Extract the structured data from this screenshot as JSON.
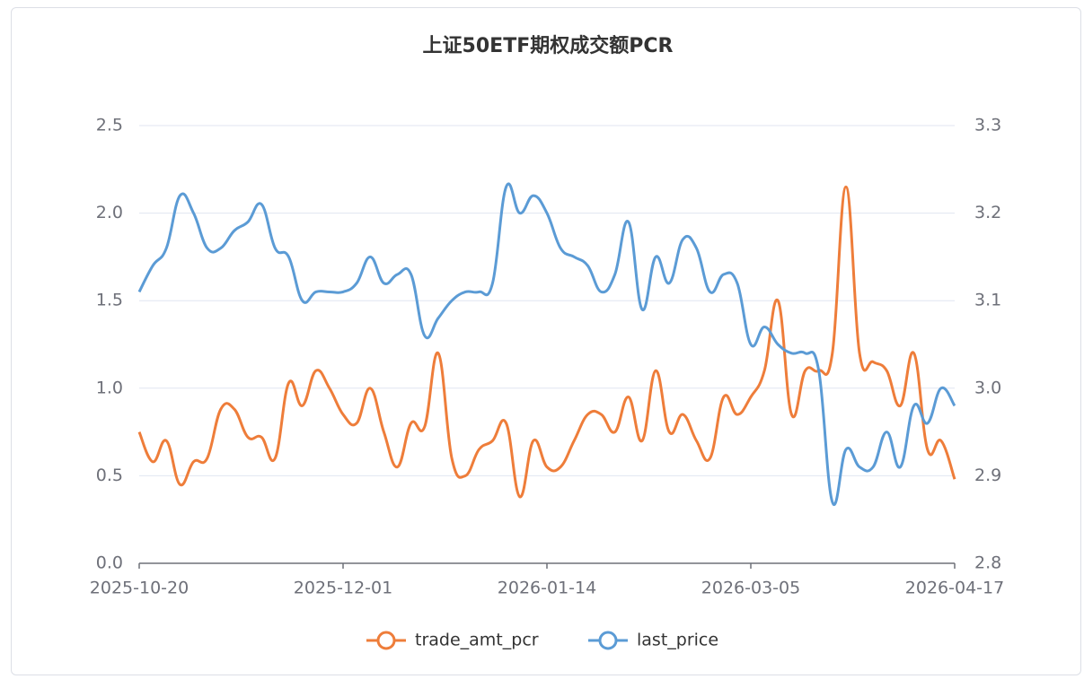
{
  "chart_data": {
    "type": "line",
    "title": "上证50ETF期权成交额PCR",
    "categories": [
      "2025-10-20",
      null,
      null,
      null,
      null,
      null,
      null,
      null,
      null,
      null,
      null,
      null,
      null,
      null,
      null,
      "2025-12-01",
      null,
      null,
      null,
      null,
      null,
      null,
      null,
      null,
      null,
      null,
      null,
      null,
      null,
      null,
      "2026-01-14",
      null,
      null,
      null,
      null,
      null,
      null,
      null,
      null,
      null,
      null,
      null,
      null,
      null,
      null,
      "2026-03-05",
      null,
      null,
      null,
      null,
      null,
      null,
      null,
      null,
      null,
      null,
      null,
      null,
      null,
      null,
      "2026-04-17"
    ],
    "series": [
      {
        "name": "trade_amt_pcr",
        "color": "#ee7d3a",
        "axis": "y",
        "values": [
          0.75,
          0.58,
          0.7,
          0.45,
          0.58,
          0.6,
          0.88,
          0.88,
          0.72,
          0.72,
          0.6,
          1.03,
          0.9,
          1.1,
          1.0,
          0.85,
          0.8,
          1.0,
          0.75,
          0.55,
          0.8,
          0.78,
          1.2,
          0.6,
          0.5,
          0.65,
          0.7,
          0.8,
          0.38,
          0.7,
          0.55,
          0.55,
          0.7,
          0.85,
          0.85,
          0.75,
          0.95,
          0.7,
          1.1,
          0.75,
          0.85,
          0.7,
          0.6,
          0.95,
          0.85,
          0.95,
          1.1,
          1.5,
          0.85,
          1.1,
          1.1,
          1.2,
          2.15,
          1.2,
          1.15,
          1.1,
          0.9,
          1.2,
          0.65,
          0.7,
          0.48
        ]
      },
      {
        "name": "last_price",
        "color": "#5b9bd5",
        "axis": "y2",
        "values": [
          3.11,
          3.14,
          3.16,
          3.22,
          3.2,
          3.16,
          3.16,
          3.18,
          3.19,
          3.21,
          3.16,
          3.15,
          3.1,
          3.11,
          3.11,
          3.11,
          3.12,
          3.15,
          3.12,
          3.13,
          3.13,
          3.06,
          3.08,
          3.1,
          3.11,
          3.11,
          3.12,
          3.23,
          3.2,
          3.22,
          3.2,
          3.16,
          3.15,
          3.14,
          3.11,
          3.13,
          3.19,
          3.09,
          3.15,
          3.12,
          3.17,
          3.16,
          3.11,
          3.13,
          3.12,
          3.05,
          3.07,
          3.05,
          3.04,
          3.04,
          3.02,
          2.87,
          2.93,
          2.91,
          2.91,
          2.95,
          2.91,
          2.98,
          2.96,
          3.0,
          2.98
        ]
      }
    ],
    "ylim": [
      0,
      2.5
    ],
    "yticks": [
      {
        "value": 0,
        "label": "0.0"
      },
      0.5,
      {
        "value": 1,
        "label": "1.0"
      },
      1.5,
      {
        "value": 2,
        "label": "2.0"
      },
      2.5
    ],
    "y2lim": [
      2.8,
      3.3
    ],
    "y2ticks": [
      2.8,
      2.9,
      {
        "value": 3,
        "label": "3.0"
      },
      3.1,
      3.2,
      3.3
    ],
    "grid": true,
    "legend": "bottom"
  }
}
